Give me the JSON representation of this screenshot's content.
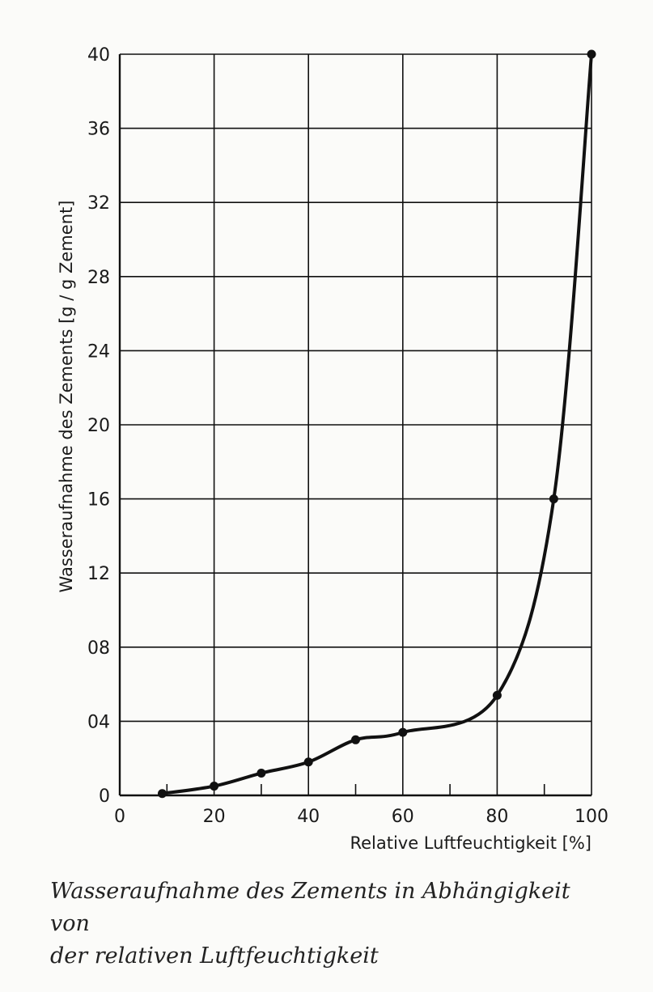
{
  "caption_line1": "Wasseraufnahme des Zements in Abhängigkeit von",
  "caption_line2": "der relativen Luftfeuchtigkeit",
  "chart_data": {
    "type": "line",
    "xlabel": "Relative Luftfeuchtigkeit [%]",
    "ylabel": "Wasseraufnahme des Zements [g / g Zement]",
    "xlim": [
      0,
      100
    ],
    "ylim": [
      0,
      40
    ],
    "x_ticks": [
      0,
      20,
      40,
      60,
      80,
      100
    ],
    "x_tick_labels": [
      "0",
      "20",
      "40",
      "60",
      "80",
      "100"
    ],
    "y_ticks": [
      0,
      4,
      8,
      12,
      16,
      20,
      24,
      28,
      32,
      36,
      40
    ],
    "y_tick_labels": [
      "0",
      "04",
      "08",
      "12",
      "16",
      "20",
      "24",
      "28",
      "32",
      "36",
      "40"
    ],
    "grid": true,
    "series": [
      {
        "x": [
          9,
          20,
          30,
          40,
          50,
          60,
          80,
          92,
          100
        ],
        "y": [
          0.1,
          0.5,
          1.2,
          1.8,
          3.0,
          3.4,
          5.4,
          16.0,
          40.0
        ]
      }
    ],
    "colors": {
      "ink": "#111111",
      "background": "#fbfbf9"
    }
  }
}
